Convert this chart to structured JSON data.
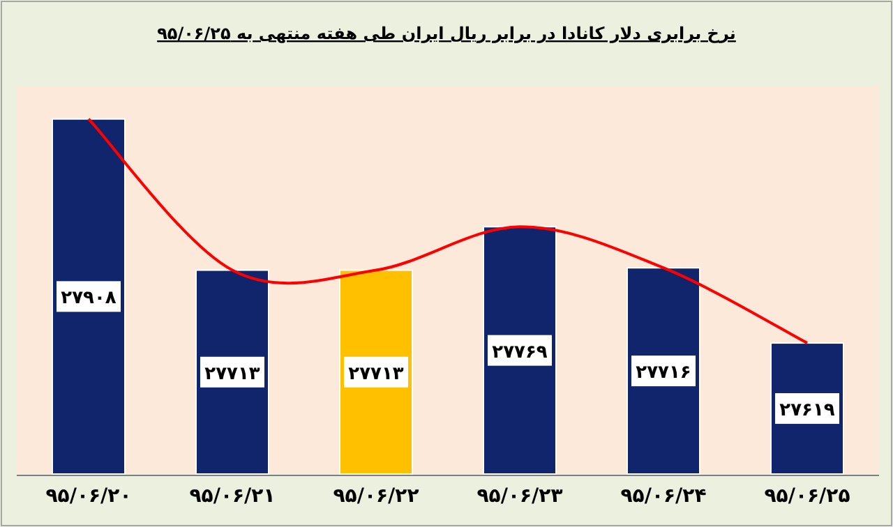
{
  "chart_data": {
    "type": "bar",
    "title": "نرخ برابری دلار کانادا در برابر ریال ایران طی هفته منتهی به ۹۵/۰۶/۲۵",
    "categories": [
      "۹۵/۰۶/۲۰",
      "۹۵/۰۶/۲۱",
      "۹۵/۰۶/۲۲",
      "۹۵/۰۶/۲۳",
      "۹۵/۰۶/۲۴",
      "۹۵/۰۶/۲۵"
    ],
    "ylim": [
      27450,
      27950
    ],
    "series": [
      {
        "values": [
          27908,
          27713,
          27713,
          27769,
          27716,
          27619
        ],
        "colors": [
          "#10256b",
          "#10256b",
          "#ffc000",
          "#10256b",
          "#10256b",
          "#10256b"
        ],
        "value_labels": [
          "۲۷۹۰۸",
          "۲۷۷۱۳",
          "۲۷۷۱۳",
          "۲۷۷۶۹",
          "۲۷۷۱۶",
          "۲۷۶۱۹"
        ]
      },
      {
        "type": "line",
        "color": "#ff0000",
        "values": [
          27908,
          27713,
          27713,
          27769,
          27716,
          27619
        ]
      }
    ]
  }
}
